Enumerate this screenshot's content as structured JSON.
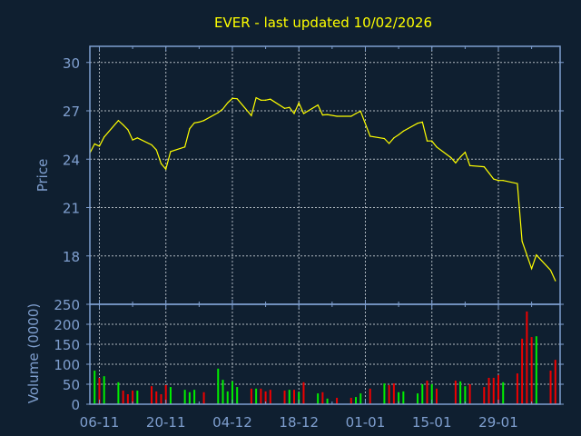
{
  "chart_data": [
    {
      "type": "line",
      "title": "EVER - last updated 10/02/2026",
      "ylabel": "Price",
      "xlabel": "",
      "ylim": [
        15,
        31
      ],
      "xlim": [
        "2025-11-04",
        "2026-02-11"
      ],
      "yticks": [
        18,
        21,
        24,
        27,
        30
      ],
      "xtick_labels": [
        "06-11",
        "20-11",
        "04-12",
        "18-12",
        "01-01",
        "15-01",
        "29-01"
      ],
      "xtick_dates": [
        "2025-11-06",
        "2025-11-20",
        "2025-12-04",
        "2025-12-18",
        "2026-01-01",
        "2026-01-15",
        "2026-01-29"
      ],
      "grid": true,
      "line_color": "#ffff00",
      "series": [
        {
          "x": [
            "2025-11-04",
            "2025-11-05",
            "2025-11-06",
            "2025-11-07",
            "2025-11-10",
            "2025-11-11",
            "2025-11-12",
            "2025-11-13",
            "2025-11-14",
            "2025-11-17",
            "2025-11-18",
            "2025-11-19",
            "2025-11-20",
            "2025-11-21",
            "2025-11-24",
            "2025-11-25",
            "2025-11-26",
            "2025-11-27",
            "2025-11-28",
            "2025-12-01",
            "2025-12-02",
            "2025-12-03",
            "2025-12-04",
            "2025-12-05",
            "2025-12-08",
            "2025-12-09",
            "2025-12-10",
            "2025-12-11",
            "2025-12-12",
            "2025-12-15",
            "2025-12-16",
            "2025-12-17",
            "2025-12-18",
            "2025-12-19",
            "2025-12-22",
            "2025-12-23",
            "2025-12-24",
            "2025-12-26",
            "2025-12-29",
            "2025-12-30",
            "2025-12-31",
            "2026-01-02",
            "2026-01-05",
            "2026-01-06",
            "2026-01-07",
            "2026-01-08",
            "2026-01-09",
            "2026-01-12",
            "2026-01-13",
            "2026-01-14",
            "2026-01-15",
            "2026-01-16",
            "2026-01-19",
            "2026-01-20",
            "2026-01-21",
            "2026-01-22",
            "2026-01-23",
            "2026-01-26",
            "2026-01-27",
            "2026-01-28",
            "2026-01-29",
            "2026-01-30",
            "2026-02-02",
            "2026-02-03",
            "2026-02-04",
            "2026-02-05",
            "2026-02-06",
            "2026-02-09",
            "2026-02-10"
          ],
          "y": [
            24.38,
            24.95,
            24.81,
            25.38,
            26.4,
            26.13,
            25.83,
            25.19,
            25.32,
            24.89,
            24.57,
            23.72,
            23.38,
            24.47,
            24.76,
            25.89,
            26.25,
            26.3,
            26.4,
            26.89,
            27.11,
            27.49,
            27.77,
            27.75,
            26.7,
            27.81,
            27.66,
            27.66,
            27.72,
            27.15,
            27.21,
            26.83,
            27.49,
            26.83,
            27.36,
            26.74,
            26.77,
            26.66,
            26.66,
            26.83,
            26.98,
            25.42,
            25.28,
            24.98,
            25.32,
            25.51,
            25.74,
            26.23,
            26.3,
            25.13,
            25.13,
            24.76,
            24.1,
            23.77,
            24.13,
            24.43,
            23.6,
            23.53,
            23.15,
            22.77,
            22.68,
            22.68,
            22.49,
            18.91,
            18.06,
            17.21,
            18.06,
            17.11,
            16.46
          ]
        }
      ]
    },
    {
      "type": "bar",
      "ylabel": "Volume (0000)",
      "ylim": [
        0,
        250
      ],
      "yticks": [
        0,
        50,
        100,
        150,
        200,
        250
      ],
      "grid": true,
      "colors": {
        "up": "#00ee00",
        "down": "#ee0000"
      },
      "x": [
        "2025-11-05",
        "2025-11-06",
        "2025-11-07",
        "2025-11-10",
        "2025-11-11",
        "2025-11-12",
        "2025-11-13",
        "2025-11-14",
        "2025-11-17",
        "2025-11-18",
        "2025-11-19",
        "2025-11-20",
        "2025-11-21",
        "2025-11-24",
        "2025-11-25",
        "2025-11-26",
        "2025-11-28",
        "2025-12-01",
        "2025-12-02",
        "2025-12-03",
        "2025-12-04",
        "2025-12-05",
        "2025-12-08",
        "2025-12-09",
        "2025-12-10",
        "2025-12-11",
        "2025-12-12",
        "2025-12-15",
        "2025-12-16",
        "2025-12-17",
        "2025-12-18",
        "2025-12-19",
        "2025-12-22",
        "2025-12-23",
        "2025-12-24",
        "2025-12-26",
        "2025-12-29",
        "2025-12-30",
        "2025-12-31",
        "2026-01-02",
        "2026-01-05",
        "2026-01-06",
        "2026-01-07",
        "2026-01-08",
        "2026-01-09",
        "2026-01-12",
        "2026-01-13",
        "2026-01-14",
        "2026-01-15",
        "2026-01-16",
        "2026-01-20",
        "2026-01-21",
        "2026-01-22",
        "2026-01-23",
        "2026-01-26",
        "2026-01-27",
        "2026-01-28",
        "2026-01-29",
        "2026-01-30",
        "2026-02-02",
        "2026-02-03",
        "2026-02-04",
        "2026-02-05",
        "2026-02-06",
        "2026-02-09",
        "2026-02-10"
      ],
      "values": [
        84,
        66,
        70,
        55,
        34,
        25,
        34,
        34,
        45,
        32,
        25,
        48,
        43,
        36,
        30,
        36,
        30,
        89,
        61,
        32,
        57,
        43,
        39,
        39,
        39,
        32,
        36,
        34,
        36,
        36,
        30,
        55,
        27,
        30,
        14,
        16,
        16,
        18,
        27,
        39,
        52,
        48,
        52,
        30,
        32,
        27,
        50,
        59,
        50,
        39,
        59,
        57,
        45,
        50,
        43,
        66,
        66,
        73,
        55,
        77,
        164,
        232,
        168,
        170,
        84,
        111
      ],
      "direction": [
        "up",
        "down",
        "up",
        "up",
        "down",
        "down",
        "down",
        "up",
        "down",
        "down",
        "down",
        "down",
        "up",
        "up",
        "up",
        "up",
        "down",
        "up",
        "up",
        "up",
        "up",
        "up",
        "down",
        "up",
        "down",
        "down",
        "down",
        "down",
        "up",
        "down",
        "up",
        "down",
        "up",
        "down",
        "up",
        "down",
        "down",
        "up",
        "up",
        "down",
        "up",
        "down",
        "down",
        "up",
        "up",
        "up",
        "up",
        "down",
        "up",
        "down",
        "down",
        "up",
        "up",
        "down",
        "down",
        "down",
        "down",
        "down",
        "up",
        "down",
        "down",
        "down",
        "down",
        "up",
        "down",
        "down"
      ]
    }
  ]
}
